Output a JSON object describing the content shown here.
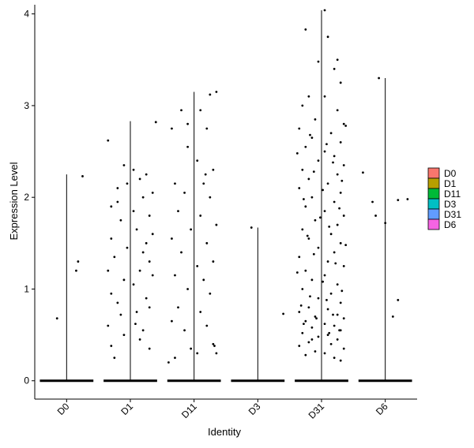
{
  "chart_data": {
    "type": "violin-jitter",
    "title": "",
    "xlabel": "Identity",
    "ylabel": "Expression Level",
    "ylim": [
      -0.2,
      4.1
    ],
    "yticks": [
      0,
      1,
      2,
      3,
      4
    ],
    "categories": [
      "D0",
      "D1",
      "D11",
      "D3",
      "D31",
      "D6"
    ],
    "grid": false,
    "legend": {
      "placement": "right",
      "entries": [
        {
          "label": "D0",
          "color": "#F8766D"
        },
        {
          "label": "D1",
          "color": "#B79F00"
        },
        {
          "label": "D11",
          "color": "#00BA38"
        },
        {
          "label": "D3",
          "color": "#00BFC4"
        },
        {
          "label": "D31",
          "color": "#619CFF"
        },
        {
          "label": "D6",
          "color": "#F564E3"
        }
      ]
    },
    "series": [
      {
        "category": "D0",
        "max": 2.25,
        "points": [
          [
            0.25,
            2.23
          ],
          [
            0.15,
            1.2
          ],
          [
            0.18,
            1.3
          ],
          [
            -0.15,
            0.68
          ]
        ]
      },
      {
        "category": "D1",
        "max": 2.83,
        "points": [
          [
            -0.35,
            2.62
          ],
          [
            0.4,
            2.82
          ],
          [
            -0.1,
            2.35
          ],
          [
            0.05,
            2.3
          ],
          [
            0.15,
            2.2
          ],
          [
            -0.2,
            2.1
          ],
          [
            0.2,
            2.0
          ],
          [
            -0.3,
            1.9
          ],
          [
            0.3,
            1.8
          ],
          [
            -0.15,
            1.75
          ],
          [
            0.1,
            1.65
          ],
          [
            0.35,
            1.6
          ],
          [
            -0.3,
            1.55
          ],
          [
            0.25,
            1.5
          ],
          [
            -0.05,
            1.45
          ],
          [
            0.2,
            1.4
          ],
          [
            -0.25,
            1.35
          ],
          [
            0.3,
            1.3
          ],
          [
            -0.35,
            1.2
          ],
          [
            0.15,
            1.2
          ],
          [
            -0.1,
            1.1
          ],
          [
            0.05,
            1.05
          ],
          [
            -0.3,
            0.95
          ],
          [
            0.25,
            0.9
          ],
          [
            -0.2,
            0.85
          ],
          [
            0.3,
            0.8
          ],
          [
            0.1,
            0.75
          ],
          [
            -0.35,
            0.6
          ],
          [
            0.2,
            0.55
          ],
          [
            -0.1,
            0.5
          ],
          [
            0.15,
            0.45
          ],
          [
            -0.3,
            0.38
          ],
          [
            0.3,
            0.35
          ],
          [
            -0.25,
            0.25
          ],
          [
            0.35,
            2.05
          ],
          [
            -0.2,
            1.95
          ],
          [
            0.05,
            1.85
          ],
          [
            0.25,
            2.25
          ],
          [
            -0.05,
            2.15
          ],
          [
            0.35,
            1.15
          ],
          [
            -0.15,
            0.72
          ],
          [
            0.08,
            0.62
          ]
        ]
      },
      {
        "category": "D11",
        "max": 3.15,
        "points": [
          [
            0.35,
            3.15
          ],
          [
            0.25,
            3.12
          ],
          [
            -0.2,
            2.95
          ],
          [
            0.1,
            2.95
          ],
          [
            -0.35,
            2.75
          ],
          [
            0.2,
            2.75
          ],
          [
            -0.1,
            2.55
          ],
          [
            0.05,
            2.4
          ],
          [
            0.3,
            2.3
          ],
          [
            -0.3,
            2.15
          ],
          [
            0.15,
            2.15
          ],
          [
            -0.15,
            2.05
          ],
          [
            0.25,
            2.0
          ],
          [
            -0.25,
            1.85
          ],
          [
            0.1,
            1.8
          ],
          [
            0.35,
            1.7
          ],
          [
            -0.05,
            1.65
          ],
          [
            -0.35,
            1.55
          ],
          [
            0.2,
            1.5
          ],
          [
            -0.2,
            1.4
          ],
          [
            0.3,
            1.3
          ],
          [
            0.05,
            1.25
          ],
          [
            -0.3,
            1.15
          ],
          [
            0.15,
            1.1
          ],
          [
            -0.1,
            1.0
          ],
          [
            0.25,
            0.95
          ],
          [
            -0.25,
            0.8
          ],
          [
            0.1,
            0.75
          ],
          [
            -0.35,
            0.65
          ],
          [
            0.2,
            0.6
          ],
          [
            -0.15,
            0.55
          ],
          [
            0.3,
            0.4
          ],
          [
            -0.05,
            0.35
          ],
          [
            0.35,
            0.3
          ],
          [
            -0.3,
            0.25
          ],
          [
            0.05,
            0.3
          ],
          [
            -0.4,
            0.2
          ],
          [
            0.32,
            0.38
          ],
          [
            -0.1,
            2.8
          ],
          [
            0.18,
            2.25
          ]
        ]
      },
      {
        "category": "D3",
        "max": 1.67,
        "points": [
          [
            -0.1,
            1.67
          ],
          [
            0.4,
            0.73
          ]
        ]
      },
      {
        "category": "D31",
        "max": 4.04,
        "points": [
          [
            0.05,
            4.04
          ],
          [
            0.1,
            3.75
          ],
          [
            -0.25,
            3.83
          ],
          [
            0.25,
            3.5
          ],
          [
            -0.05,
            3.48
          ],
          [
            0.2,
            3.4
          ],
          [
            0.3,
            3.25
          ],
          [
            -0.2,
            3.1
          ],
          [
            0.05,
            3.1
          ],
          [
            -0.3,
            3.0
          ],
          [
            0.25,
            2.95
          ],
          [
            -0.1,
            2.85
          ],
          [
            0.35,
            2.8
          ],
          [
            -0.35,
            2.75
          ],
          [
            0.15,
            2.7
          ],
          [
            -0.15,
            2.65
          ],
          [
            0.3,
            2.6
          ],
          [
            -0.25,
            2.55
          ],
          [
            0.05,
            2.5
          ],
          [
            0.2,
            2.45
          ],
          [
            -0.05,
            2.4
          ],
          [
            0.35,
            2.35
          ],
          [
            -0.3,
            2.3
          ],
          [
            0.25,
            2.25
          ],
          [
            -0.2,
            2.2
          ],
          [
            0.1,
            2.15
          ],
          [
            -0.35,
            2.1
          ],
          [
            0.3,
            2.05
          ],
          [
            -0.15,
            2.0
          ],
          [
            0.2,
            1.95
          ],
          [
            -0.25,
            1.9
          ],
          [
            0.05,
            1.85
          ],
          [
            0.35,
            1.8
          ],
          [
            -0.1,
            1.75
          ],
          [
            0.25,
            1.7
          ],
          [
            -0.3,
            1.65
          ],
          [
            0.15,
            1.6
          ],
          [
            -0.2,
            1.55
          ],
          [
            0.3,
            1.5
          ],
          [
            -0.05,
            1.45
          ],
          [
            0.2,
            1.4
          ],
          [
            -0.35,
            1.35
          ],
          [
            0.1,
            1.3
          ],
          [
            0.35,
            1.25
          ],
          [
            -0.25,
            1.2
          ],
          [
            0.05,
            1.15
          ],
          [
            -0.15,
            1.1
          ],
          [
            0.25,
            1.05
          ],
          [
            -0.3,
            1.0
          ],
          [
            0.15,
            0.95
          ],
          [
            -0.05,
            0.9
          ],
          [
            0.3,
            0.85
          ],
          [
            -0.2,
            0.8
          ],
          [
            0.1,
            0.78
          ],
          [
            -0.35,
            0.75
          ],
          [
            0.25,
            0.72
          ],
          [
            -0.1,
            0.7
          ],
          [
            0.35,
            0.68
          ],
          [
            -0.25,
            0.65
          ],
          [
            0.05,
            0.62
          ],
          [
            0.2,
            0.6
          ],
          [
            -0.15,
            0.58
          ],
          [
            0.3,
            0.55
          ],
          [
            -0.3,
            0.52
          ],
          [
            0.1,
            0.5
          ],
          [
            -0.05,
            0.48
          ],
          [
            0.25,
            0.45
          ],
          [
            -0.2,
            0.42
          ],
          [
            0.15,
            0.4
          ],
          [
            -0.35,
            0.38
          ],
          [
            0.35,
            0.35
          ],
          [
            -0.1,
            0.32
          ],
          [
            0.05,
            0.3
          ],
          [
            -0.25,
            0.28
          ],
          [
            0.2,
            0.25
          ],
          [
            0.3,
            0.22
          ],
          [
            -0.15,
            0.45
          ],
          [
            0.12,
            0.52
          ],
          [
            -0.28,
            0.62
          ],
          [
            0.28,
            0.55
          ],
          [
            -0.08,
            0.68
          ],
          [
            0.18,
            0.72
          ],
          [
            -0.32,
            0.82
          ],
          [
            0.08,
            0.88
          ],
          [
            -0.18,
            0.92
          ],
          [
            0.32,
            0.98
          ],
          [
            0.02,
            1.08
          ],
          [
            -0.38,
            1.18
          ],
          [
            0.22,
            1.28
          ],
          [
            -0.12,
            1.38
          ],
          [
            0.38,
            1.48
          ],
          [
            -0.22,
            1.58
          ],
          [
            0.12,
            1.68
          ],
          [
            -0.02,
            1.78
          ],
          [
            0.28,
            1.88
          ],
          [
            -0.28,
            1.98
          ],
          [
            0.02,
            2.08
          ],
          [
            0.32,
            2.18
          ],
          [
            -0.12,
            2.28
          ],
          [
            0.18,
            2.38
          ],
          [
            -0.38,
            2.48
          ],
          [
            0.08,
            2.58
          ],
          [
            -0.18,
            2.68
          ],
          [
            0.38,
            2.78
          ]
        ]
      },
      {
        "category": "D6",
        "max": 3.3,
        "points": [
          [
            -0.1,
            3.3
          ],
          [
            -0.35,
            2.27
          ],
          [
            -0.2,
            1.95
          ],
          [
            0.2,
            1.97
          ],
          [
            0.35,
            1.98
          ],
          [
            -0.15,
            1.8
          ],
          [
            0.0,
            1.72
          ],
          [
            0.2,
            0.88
          ],
          [
            0.12,
            0.7
          ]
        ]
      }
    ]
  }
}
